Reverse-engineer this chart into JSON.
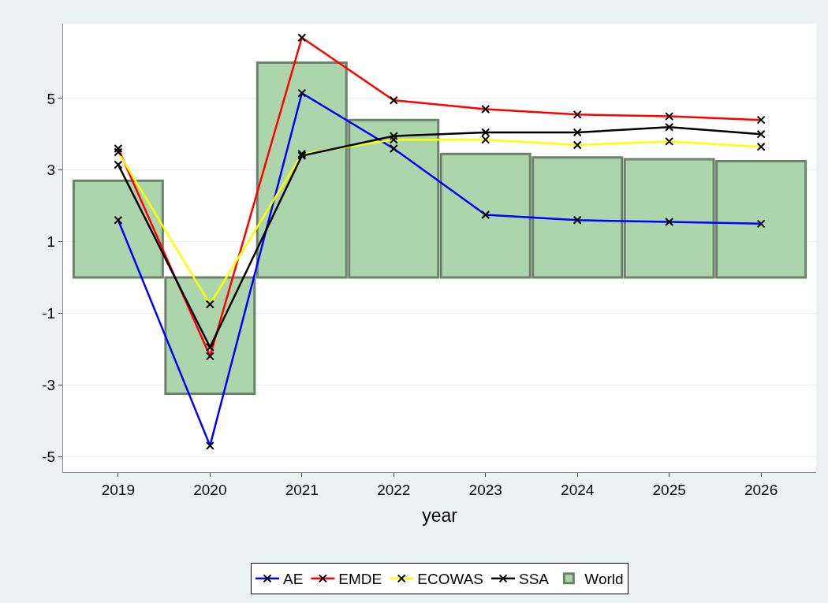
{
  "chart_data": {
    "type": "line",
    "xlabel": "year",
    "categories": [
      "2019",
      "2020",
      "2021",
      "2022",
      "2023",
      "2024",
      "2025",
      "2026"
    ],
    "series": [
      {
        "name": "AE",
        "color": "#0000ff",
        "values": [
          1.6,
          -4.7,
          5.15,
          3.6,
          1.75,
          1.6,
          1.55,
          1.5
        ]
      },
      {
        "name": "EMDE",
        "color": "#ff0000",
        "values": [
          3.6,
          -2.2,
          6.7,
          4.95,
          4.7,
          4.55,
          4.5,
          4.4
        ]
      },
      {
        "name": "ECOWAS",
        "color": "#ffff00",
        "values": [
          3.5,
          -0.75,
          3.45,
          3.85,
          3.85,
          3.7,
          3.8,
          3.65
        ]
      },
      {
        "name": "SSA",
        "color": "#000000",
        "values": [
          3.15,
          -1.95,
          3.4,
          3.95,
          4.05,
          4.05,
          4.2,
          4.0
        ]
      },
      {
        "name": "World",
        "type": "bar",
        "color": "#acd5ac",
        "values": [
          2.7,
          -3.25,
          6.0,
          4.4,
          3.45,
          3.35,
          3.3,
          3.25
        ]
      }
    ],
    "ylim": [
      -5.44,
      7.09
    ],
    "yticks": [
      -5,
      -3,
      -1,
      1,
      3,
      5
    ],
    "grid": "y",
    "legend": "bottom",
    "marker": "cross"
  }
}
